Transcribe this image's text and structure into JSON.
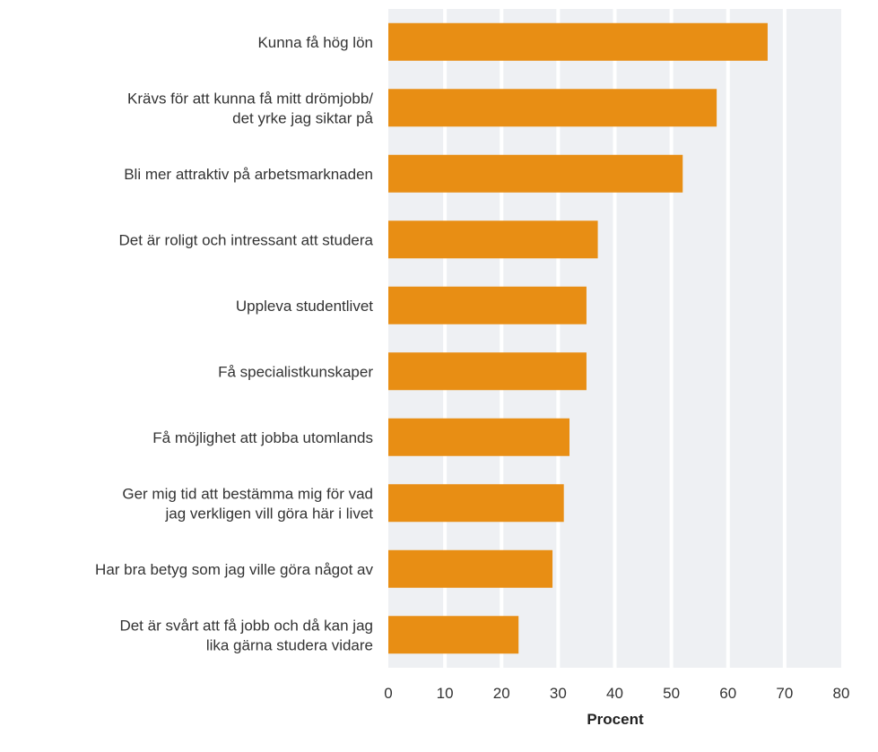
{
  "chart_data": {
    "type": "bar",
    "orientation": "horizontal",
    "categories": [
      [
        "Kunna få hög lön"
      ],
      [
        "Krävs för att kunna få mitt drömjobb/",
        "det yrke jag siktar på"
      ],
      [
        "Bli mer attraktiv på arbetsmarknaden"
      ],
      [
        "Det är roligt och intressant att studera"
      ],
      [
        "Uppleva studentlivet"
      ],
      [
        "Få specialistkunskaper"
      ],
      [
        "Få möjlighet att jobba utomlands"
      ],
      [
        "Ger mig tid att bestämma mig för vad",
        "jag verkligen vill göra här i livet"
      ],
      [
        "Har bra betyg som jag ville göra något av"
      ],
      [
        "Det är svårt att få jobb och då kan jag",
        "lika gärna studera vidare"
      ]
    ],
    "values": [
      67,
      58,
      52,
      37,
      35,
      35,
      32,
      31,
      29,
      23
    ],
    "xlabel": "Procent",
    "xlim": [
      0,
      80
    ],
    "xticks": [
      0,
      10,
      20,
      30,
      40,
      50,
      60,
      70,
      80
    ],
    "grid": true,
    "colors": {
      "bar": "#E88E14",
      "plot_bg": "#EEF0F3",
      "grid": "#FFFFFF"
    }
  }
}
